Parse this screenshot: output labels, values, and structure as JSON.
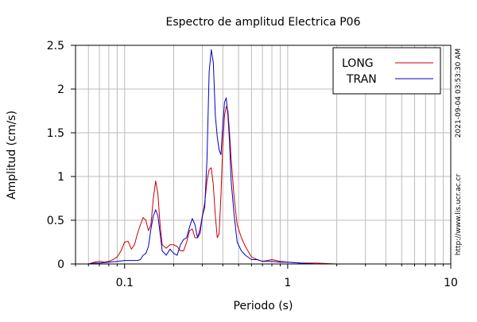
{
  "chart_data": {
    "type": "line",
    "title": "Espectro de amplitud Electrica P06",
    "xlabel": "Periodo (s)",
    "ylabel": "Amplitud (cm/s)",
    "x_scale": "log",
    "xlim": [
      0.05,
      10
    ],
    "ylim": [
      0,
      2.5
    ],
    "x_ticks": [
      {
        "value": 0.1,
        "label": "0.1"
      },
      {
        "value": 1,
        "label": "1"
      },
      {
        "value": 10,
        "label": "10"
      }
    ],
    "y_ticks": [
      {
        "value": 0,
        "label": "0"
      },
      {
        "value": 0.5,
        "label": "0.5"
      },
      {
        "value": 1,
        "label": "1"
      },
      {
        "value": 1.5,
        "label": "1.5"
      },
      {
        "value": 2,
        "label": "2"
      },
      {
        "value": 2.5,
        "label": "2.5"
      }
    ],
    "grid": true,
    "legend_position": "top-right",
    "series": [
      {
        "name": "LONG",
        "color": "#cc0000",
        "points": [
          [
            0.06,
            0.0
          ],
          [
            0.065,
            0.02
          ],
          [
            0.07,
            0.03
          ],
          [
            0.075,
            0.02
          ],
          [
            0.08,
            0.03
          ],
          [
            0.085,
            0.05
          ],
          [
            0.09,
            0.08
          ],
          [
            0.095,
            0.15
          ],
          [
            0.1,
            0.25
          ],
          [
            0.105,
            0.26
          ],
          [
            0.11,
            0.17
          ],
          [
            0.115,
            0.22
          ],
          [
            0.12,
            0.35
          ],
          [
            0.125,
            0.45
          ],
          [
            0.13,
            0.53
          ],
          [
            0.135,
            0.5
          ],
          [
            0.14,
            0.38
          ],
          [
            0.145,
            0.45
          ],
          [
            0.15,
            0.75
          ],
          [
            0.155,
            0.95
          ],
          [
            0.16,
            0.8
          ],
          [
            0.165,
            0.45
          ],
          [
            0.17,
            0.22
          ],
          [
            0.18,
            0.18
          ],
          [
            0.19,
            0.22
          ],
          [
            0.2,
            0.22
          ],
          [
            0.21,
            0.2
          ],
          [
            0.22,
            0.15
          ],
          [
            0.23,
            0.15
          ],
          [
            0.24,
            0.25
          ],
          [
            0.25,
            0.38
          ],
          [
            0.26,
            0.4
          ],
          [
            0.27,
            0.3
          ],
          [
            0.28,
            0.3
          ],
          [
            0.29,
            0.4
          ],
          [
            0.3,
            0.55
          ],
          [
            0.31,
            0.7
          ],
          [
            0.32,
            0.95
          ],
          [
            0.33,
            1.08
          ],
          [
            0.34,
            1.1
          ],
          [
            0.35,
            0.9
          ],
          [
            0.36,
            0.55
          ],
          [
            0.37,
            0.3
          ],
          [
            0.38,
            0.35
          ],
          [
            0.39,
            0.8
          ],
          [
            0.4,
            1.35
          ],
          [
            0.41,
            1.7
          ],
          [
            0.42,
            1.8
          ],
          [
            0.43,
            1.75
          ],
          [
            0.44,
            1.5
          ],
          [
            0.45,
            1.2
          ],
          [
            0.47,
            0.75
          ],
          [
            0.49,
            0.45
          ],
          [
            0.52,
            0.3
          ],
          [
            0.55,
            0.2
          ],
          [
            0.6,
            0.08
          ],
          [
            0.65,
            0.05
          ],
          [
            0.7,
            0.03
          ],
          [
            0.75,
            0.04
          ],
          [
            0.8,
            0.05
          ],
          [
            0.85,
            0.04
          ],
          [
            0.9,
            0.03
          ],
          [
            1.0,
            0.02
          ],
          [
            1.2,
            0.01
          ],
          [
            1.5,
            0.01
          ],
          [
            2.0,
            0.0
          ],
          [
            3.0,
            0.0
          ],
          [
            5.0,
            0.0
          ],
          [
            10.0,
            0.0
          ]
        ]
      },
      {
        "name": "TRAN",
        "color": "#0000cc",
        "points": [
          [
            0.06,
            0.0
          ],
          [
            0.065,
            0.01
          ],
          [
            0.07,
            0.01
          ],
          [
            0.08,
            0.02
          ],
          [
            0.09,
            0.03
          ],
          [
            0.1,
            0.04
          ],
          [
            0.11,
            0.04
          ],
          [
            0.12,
            0.04
          ],
          [
            0.125,
            0.05
          ],
          [
            0.13,
            0.1
          ],
          [
            0.135,
            0.12
          ],
          [
            0.14,
            0.2
          ],
          [
            0.145,
            0.4
          ],
          [
            0.15,
            0.55
          ],
          [
            0.155,
            0.62
          ],
          [
            0.16,
            0.55
          ],
          [
            0.165,
            0.35
          ],
          [
            0.17,
            0.15
          ],
          [
            0.18,
            0.1
          ],
          [
            0.19,
            0.17
          ],
          [
            0.2,
            0.12
          ],
          [
            0.21,
            0.1
          ],
          [
            0.22,
            0.22
          ],
          [
            0.23,
            0.28
          ],
          [
            0.24,
            0.3
          ],
          [
            0.25,
            0.42
          ],
          [
            0.26,
            0.52
          ],
          [
            0.27,
            0.45
          ],
          [
            0.28,
            0.3
          ],
          [
            0.29,
            0.35
          ],
          [
            0.3,
            0.55
          ],
          [
            0.31,
            0.65
          ],
          [
            0.32,
            1.2
          ],
          [
            0.33,
            2.2
          ],
          [
            0.34,
            2.45
          ],
          [
            0.35,
            2.3
          ],
          [
            0.36,
            1.7
          ],
          [
            0.37,
            1.45
          ],
          [
            0.38,
            1.3
          ],
          [
            0.39,
            1.25
          ],
          [
            0.4,
            1.6
          ],
          [
            0.41,
            1.85
          ],
          [
            0.42,
            1.9
          ],
          [
            0.43,
            1.7
          ],
          [
            0.44,
            1.4
          ],
          [
            0.45,
            0.95
          ],
          [
            0.47,
            0.55
          ],
          [
            0.49,
            0.25
          ],
          [
            0.52,
            0.15
          ],
          [
            0.55,
            0.1
          ],
          [
            0.6,
            0.05
          ],
          [
            0.65,
            0.05
          ],
          [
            0.7,
            0.03
          ],
          [
            0.8,
            0.03
          ],
          [
            0.9,
            0.02
          ],
          [
            1.0,
            0.02
          ],
          [
            1.2,
            0.01
          ],
          [
            1.5,
            0.0
          ],
          [
            2.0,
            0.0
          ],
          [
            3.0,
            0.0
          ],
          [
            5.0,
            0.0
          ],
          [
            10.0,
            0.0
          ]
        ]
      }
    ]
  },
  "side_text": {
    "timestamp": "2021-09-04 03:53:30 AM",
    "url": "http://www.lis.ucr.ac.cr"
  }
}
